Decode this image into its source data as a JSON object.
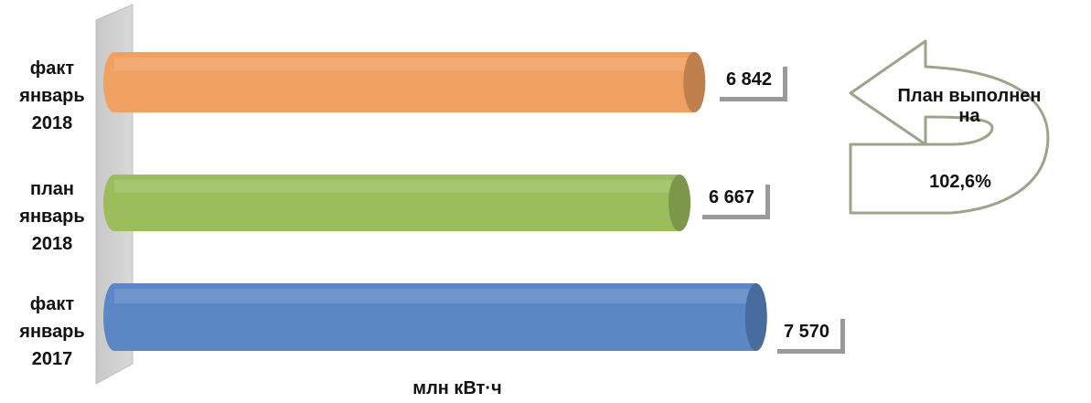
{
  "chart_data": {
    "type": "bar",
    "orientation": "horizontal",
    "categories": [
      "факт\nянварь\n2018",
      "план\nянварь\n2018",
      "факт\nянварь\n2017"
    ],
    "values": [
      6842,
      6667,
      7570
    ],
    "value_labels": [
      "6 842",
      "6 667",
      "7 570"
    ],
    "colors": [
      "#f0a060",
      "#9cbd5c",
      "#5b87c5"
    ],
    "xlabel": "млн кВт·ч",
    "xlim": [
      0,
      8400
    ],
    "grid": false
  },
  "annotation": {
    "line1": "План выполнен",
    "line2": "на",
    "value": "102,6%"
  }
}
